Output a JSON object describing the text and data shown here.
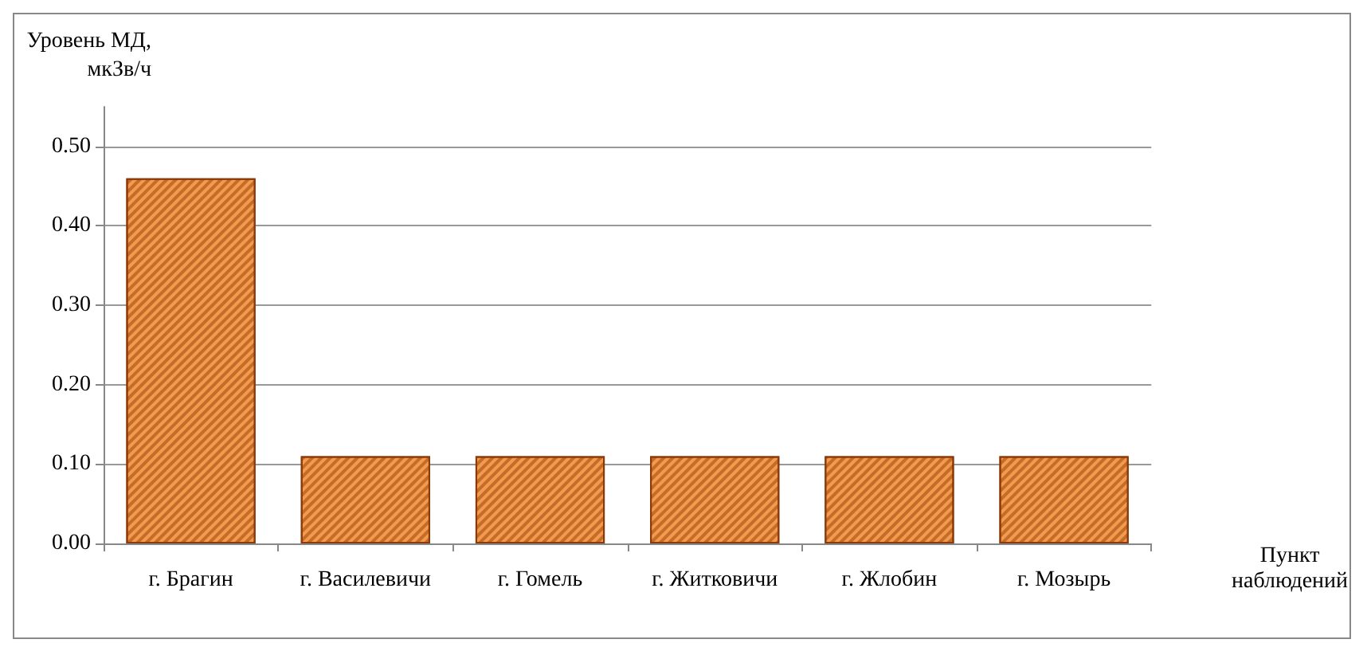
{
  "chart_data": {
    "type": "bar",
    "ylabel": "Уровень МД, мкЗв/ч",
    "xlabel": "Пункт наблюдений",
    "categories": [
      "г. Брагин",
      "г. Василевичи",
      "г. Гомель",
      "г. Житковичи",
      "г. Жлобин",
      "г. Мозырь"
    ],
    "values": [
      0.46,
      0.11,
      0.11,
      0.11,
      0.11,
      0.11
    ],
    "color": "#f39a4c",
    "ylim": [
      0,
      0.55
    ],
    "yticks": [
      {
        "value": 0,
        "label": "0.00"
      },
      {
        "value": 0.1,
        "label": "0.10"
      },
      {
        "value": 0.2,
        "label": "0.20"
      },
      {
        "value": 0.3,
        "label": "0.30"
      },
      {
        "value": 0.4,
        "label": "0.40"
      },
      {
        "value": 0.5,
        "label": "0.50"
      }
    ],
    "grid": "y"
  }
}
